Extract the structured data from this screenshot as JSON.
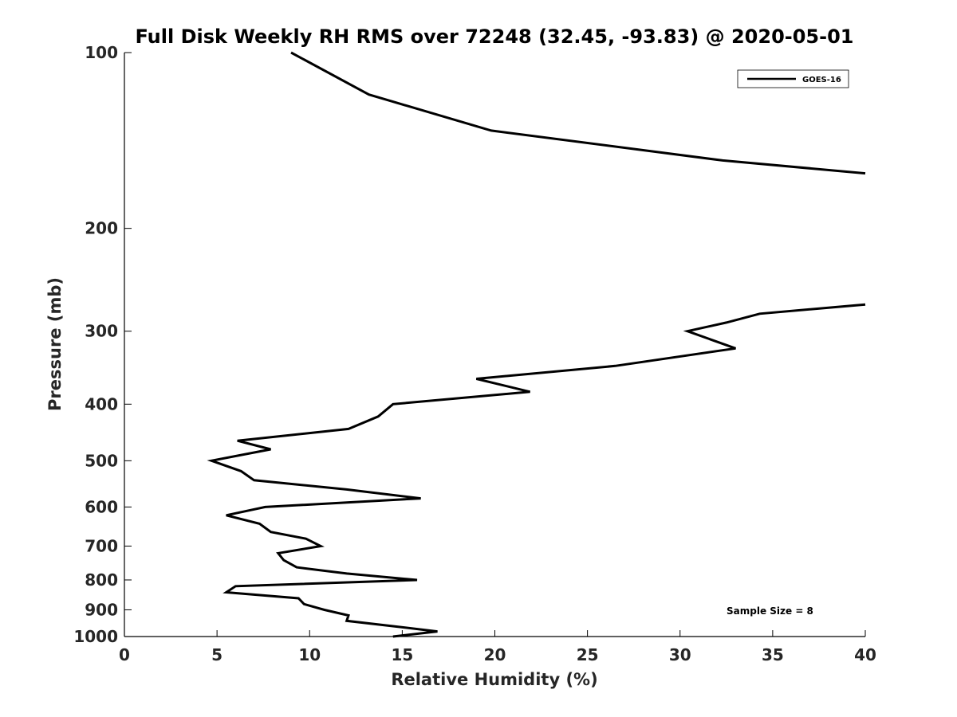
{
  "chart_data": {
    "type": "line",
    "title": "Full Disk Weekly RH RMS over 72248 (32.45, -93.83) @ 2020-05-01",
    "xlabel": "Relative Humidity (%)",
    "ylabel": "Pressure (mb)",
    "xlim": [
      0,
      40
    ],
    "ylim": [
      100,
      1000
    ],
    "yscale": "log",
    "y_reversed": true,
    "grid": false,
    "legend_position": "top-right",
    "x_ticks": [
      "0",
      "5",
      "10",
      "15",
      "20",
      "25",
      "30",
      "35",
      "40"
    ],
    "y_ticks": [
      "100",
      "200",
      "300",
      "400",
      "500",
      "600",
      "700",
      "800",
      "900",
      "1000"
    ],
    "annotation": "Sample Size = 8",
    "series": [
      {
        "name": "GOES-16",
        "color": "#000000",
        "segments": [
          [
            [
              9.0,
              100
            ],
            [
              13.2,
              118
            ],
            [
              19.8,
              136
            ],
            [
              32.3,
              153
            ],
            [
              40.0,
              161
            ]
          ],
          [
            [
              40.0,
              270
            ],
            [
              34.3,
              280
            ],
            [
              32.5,
              290
            ],
            [
              30.4,
              300
            ],
            [
              33.0,
              321
            ],
            [
              26.5,
              344
            ],
            [
              19.0,
              362
            ],
            [
              21.9,
              381
            ],
            [
              14.5,
              400
            ],
            [
              13.7,
              420
            ],
            [
              12.1,
              441
            ],
            [
              6.1,
              462
            ],
            [
              7.9,
              478
            ],
            [
              4.7,
              500
            ],
            [
              6.3,
              521
            ],
            [
              7.0,
              540
            ],
            [
              12.0,
              560
            ],
            [
              16.0,
              580
            ],
            [
              7.6,
              600
            ],
            [
              5.5,
              620
            ],
            [
              7.3,
              641
            ],
            [
              7.9,
              662
            ],
            [
              9.8,
              680
            ],
            [
              10.6,
              700
            ],
            [
              8.3,
              720
            ],
            [
              8.6,
              740
            ],
            [
              9.3,
              761
            ],
            [
              12.0,
              780
            ],
            [
              15.8,
              800
            ],
            [
              6.0,
              820
            ],
            [
              5.5,
              840
            ],
            [
              9.4,
              860
            ],
            [
              9.7,
              880
            ],
            [
              10.8,
              900
            ],
            [
              12.1,
              920
            ],
            [
              12.0,
              940
            ],
            [
              14.5,
              960
            ],
            [
              16.9,
              980
            ],
            [
              14.5,
              1000
            ]
          ]
        ]
      }
    ]
  }
}
